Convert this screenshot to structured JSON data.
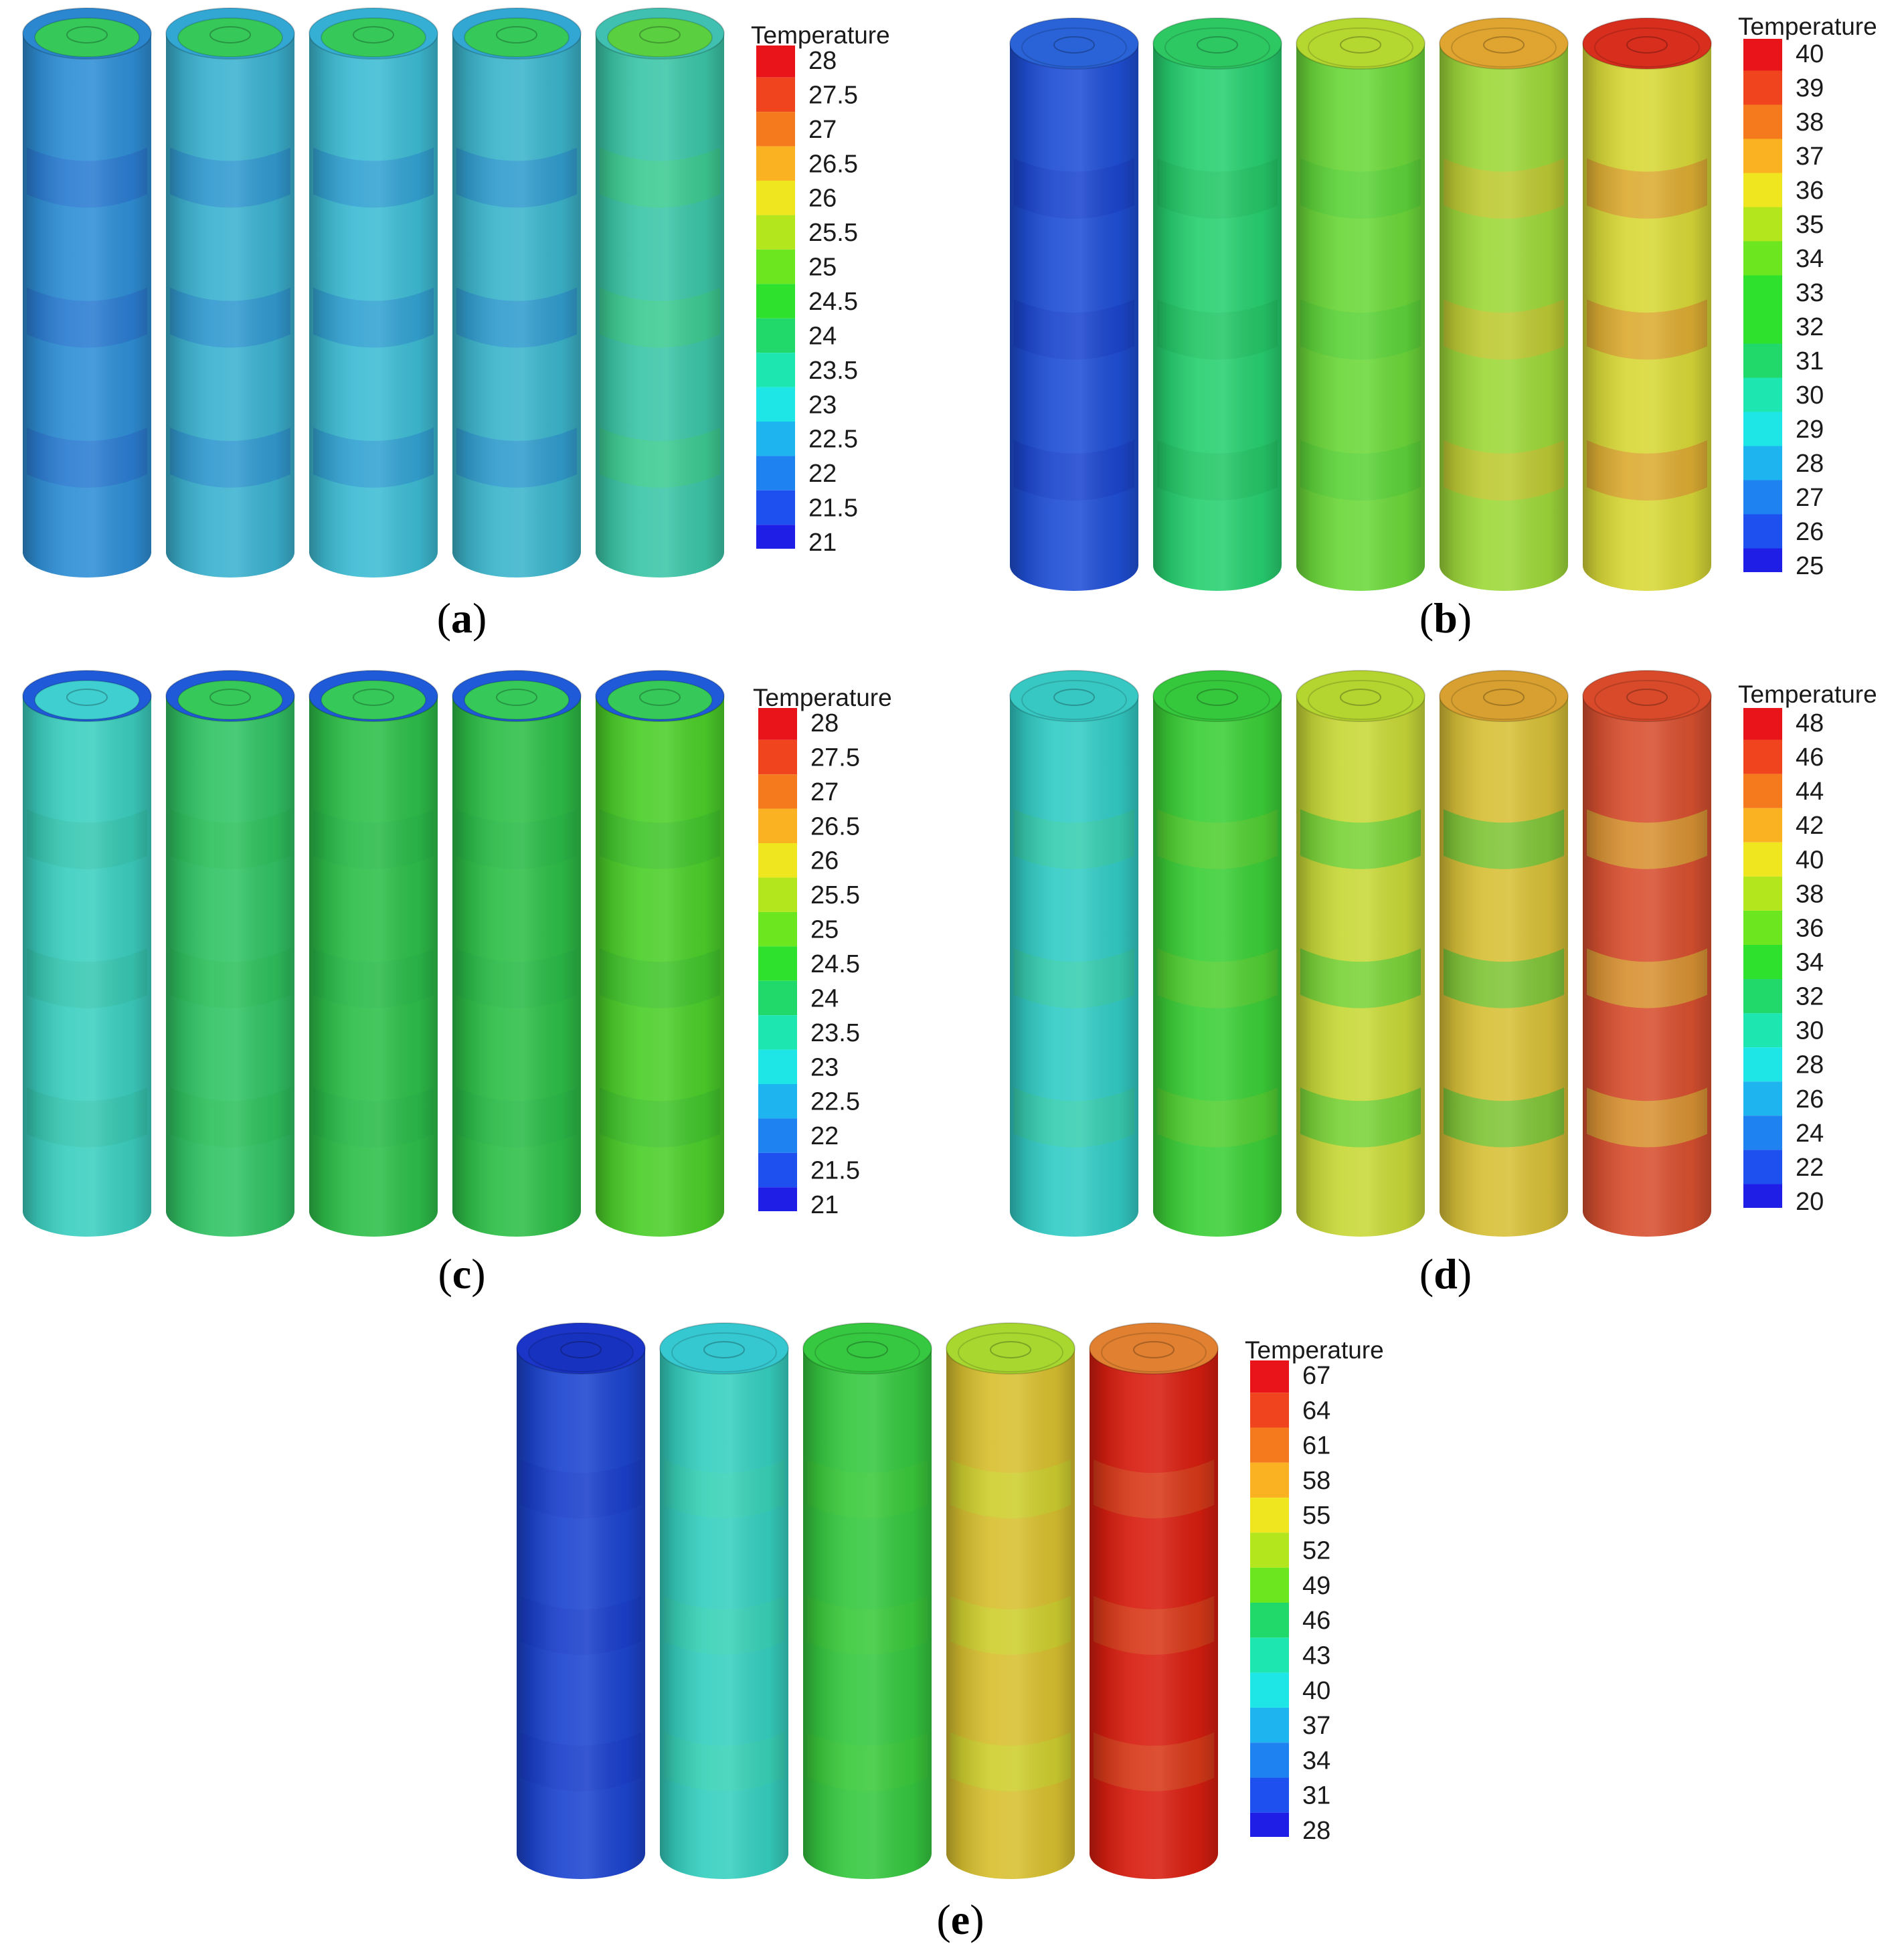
{
  "figure": {
    "panels": [
      {
        "label": "a",
        "legend": {
          "title": "Temperature",
          "ticks": [
            "28",
            "27.5",
            "27",
            "26.5",
            "26",
            "25.5",
            "25",
            "24.5",
            "24",
            "23.5",
            "23",
            "22.5",
            "22",
            "21.5",
            "21"
          ]
        },
        "cells": [
          {
            "body": "#2f8fd6",
            "rim": "#2b87d0",
            "cap": "#36c95a",
            "patch": "#2a6fd0"
          },
          {
            "body": "#3cb2d0",
            "rim": "#33a7d4",
            "cap": "#36c95a",
            "patch": "#2a86d0"
          },
          {
            "body": "#3ebcd4",
            "rim": "#35b0d4",
            "cap": "#36c95a",
            "patch": "#2a8ed0"
          },
          {
            "body": "#3cb5cc",
            "rim": "#33a7d4",
            "cap": "#36c95a",
            "patch": "#2a88d0"
          },
          {
            "body": "#3cc6a8",
            "rim": "#40c0b0",
            "cap": "#5ad040",
            "patch": "#3fd080"
          }
        ]
      },
      {
        "label": "b",
        "legend": {
          "title": "Temperature",
          "ticks": [
            "40",
            "39",
            "38",
            "37",
            "36",
            "35",
            "34",
            "33",
            "32",
            "31",
            "30",
            "29",
            "28",
            "27",
            "26",
            "25"
          ]
        },
        "cells": [
          {
            "body": "#1f4fd6",
            "rim": "#2a63d8",
            "cap": "#2a63d8",
            "patch": "#1a3fc8"
          },
          {
            "body": "#28d070",
            "rim": "#2ec863",
            "cap": "#2ec863",
            "patch": "#22c060"
          },
          {
            "body": "#6cd83a",
            "rim": "#b4d830",
            "cap": "#b4d830",
            "patch": "#52cf3a"
          },
          {
            "body": "#9ed83a",
            "rim": "#e0a530",
            "cap": "#e0a530",
            "patch": "#d8c030"
          },
          {
            "body": "#d8d838",
            "rim": "#d82e1e",
            "cap": "#d82e1e",
            "patch": "#e08830"
          }
        ]
      },
      {
        "label": "c",
        "legend": {
          "title": "Temperature",
          "ticks": [
            "28",
            "27.5",
            "27",
            "26.5",
            "26",
            "25.5",
            "25",
            "24.5",
            "24",
            "23.5",
            "23",
            "22.5",
            "22",
            "21.5",
            "21"
          ]
        },
        "cells": [
          {
            "body": "#3ccfc0",
            "rim": "#1f5ad8",
            "cap": "#40cfd0",
            "patch": "#34c3a8"
          },
          {
            "body": "#32c465",
            "rim": "#1f5ad8",
            "cap": "#36c95a",
            "patch": "#2dbf5a"
          },
          {
            "body": "#2ebf4a",
            "rim": "#1f5ad8",
            "cap": "#36c95a",
            "patch": "#2ab84a"
          },
          {
            "body": "#2ebf48",
            "rim": "#1f5ad8",
            "cap": "#36c95a",
            "patch": "#2ab848"
          },
          {
            "body": "#4ccf2a",
            "rim": "#1f5ad8",
            "cap": "#36c95a",
            "patch": "#3cc030"
          }
        ]
      },
      {
        "label": "d",
        "legend": {
          "title": "Temperature",
          "ticks": [
            "48",
            "46",
            "44",
            "42",
            "40",
            "38",
            "36",
            "34",
            "32",
            "30",
            "28",
            "26",
            "24",
            "22",
            "20"
          ]
        },
        "cells": [
          {
            "body": "#33ccc6",
            "rim": "#38c8c4",
            "cap": "#38c8c4",
            "patch": "#3cd0a0"
          },
          {
            "body": "#3ccf38",
            "rim": "#36c83c",
            "cap": "#36c83c",
            "patch": "#64d030"
          },
          {
            "body": "#c8d838",
            "rim": "#b4d430",
            "cap": "#b4d430",
            "patch": "#3ccf3a"
          },
          {
            "body": "#d8c038",
            "rim": "#d8a030",
            "cap": "#d8a030",
            "patch": "#3ac83a"
          },
          {
            "body": "#d85030",
            "rim": "#d84a2a",
            "cap": "#d84a2a",
            "patch": "#d8c838"
          }
        ]
      },
      {
        "label": "e",
        "legend": {
          "title": "Temperature",
          "ticks": [
            "67",
            "64",
            "61",
            "58",
            "55",
            "52",
            "49",
            "46",
            "43",
            "40",
            "37",
            "34",
            "31",
            "28"
          ]
        },
        "cells": [
          {
            "body": "#1d45d0",
            "rim": "#1a35c8",
            "cap": "#1832c0",
            "patch": "#1a3cc8"
          },
          {
            "body": "#36d0c0",
            "rim": "#36c8d0",
            "cap": "#36c8d0",
            "patch": "#3cd4b0"
          },
          {
            "body": "#36c840",
            "rim": "#36c840",
            "cap": "#36c840",
            "patch": "#40cc38"
          },
          {
            "body": "#d8c030",
            "rim": "#a8d830",
            "cap": "#a8d830",
            "patch": "#c8d830"
          },
          {
            "body": "#d81e10",
            "rim": "#e08030",
            "cap": "#e08030",
            "patch": "#d85020"
          }
        ]
      }
    ]
  }
}
